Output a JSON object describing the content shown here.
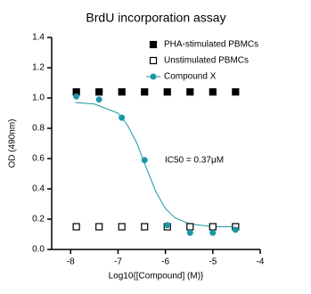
{
  "chart_data": {
    "type": "scatter",
    "title": "BrdU incorporation assay",
    "x_label": "Log10{[Compound] (M)}",
    "y_label": "OD (490nm)",
    "annotation": "IC50 = 0.37μM",
    "xlim": [
      -8.4,
      -4
    ],
    "xticks": [
      -8,
      -7,
      -6,
      -5,
      -4
    ],
    "ylim": [
      0,
      1.4
    ],
    "yticks": [
      {
        "value": 0,
        "label": "0.0"
      },
      {
        "value": 0.2,
        "label": "0.2"
      },
      {
        "value": 0.4,
        "label": "0.4"
      },
      {
        "value": 0.6,
        "label": "0.6"
      },
      {
        "value": 0.8,
        "label": "0.8"
      },
      {
        "value": 1,
        "label": "1.0"
      },
      {
        "value": 1.2,
        "label": "1.2"
      },
      {
        "value": 1.4,
        "label": "1.4"
      }
    ],
    "legend": "top-right",
    "x": [
      -7.88,
      -7.4,
      -6.92,
      -6.44,
      -5.96,
      -5.48,
      -5.0,
      -4.52
    ],
    "series": [
      {
        "name": "PHA-stimulated PBMCs",
        "color": "#000000",
        "marker": "filled-square",
        "values": [
          1.04,
          1.04,
          1.04,
          1.04,
          1.04,
          1.04,
          1.04,
          1.04
        ]
      },
      {
        "name": "Unstimulated PBMCs",
        "color": "#000000",
        "marker": "open-square",
        "values": [
          0.15,
          0.15,
          0.15,
          0.15,
          0.15,
          0.15,
          0.15,
          0.15
        ]
      },
      {
        "name": "Compound X",
        "color": "#1a97a6",
        "marker": "circle",
        "values": [
          1.01,
          0.99,
          0.87,
          0.59,
          0.16,
          0.11,
          0.11,
          0.13
        ]
      }
    ],
    "fit_curve": {
      "color": "#1a97a6",
      "x": [
        -7.9,
        -7.5,
        -7.0,
        -6.8,
        -6.6,
        -6.43,
        -6.2,
        -6.0,
        -5.8,
        -5.5,
        -5.0,
        -4.5
      ],
      "values": [
        0.97,
        0.96,
        0.9,
        0.82,
        0.7,
        0.56,
        0.38,
        0.27,
        0.21,
        0.17,
        0.15,
        0.15
      ]
    }
  }
}
